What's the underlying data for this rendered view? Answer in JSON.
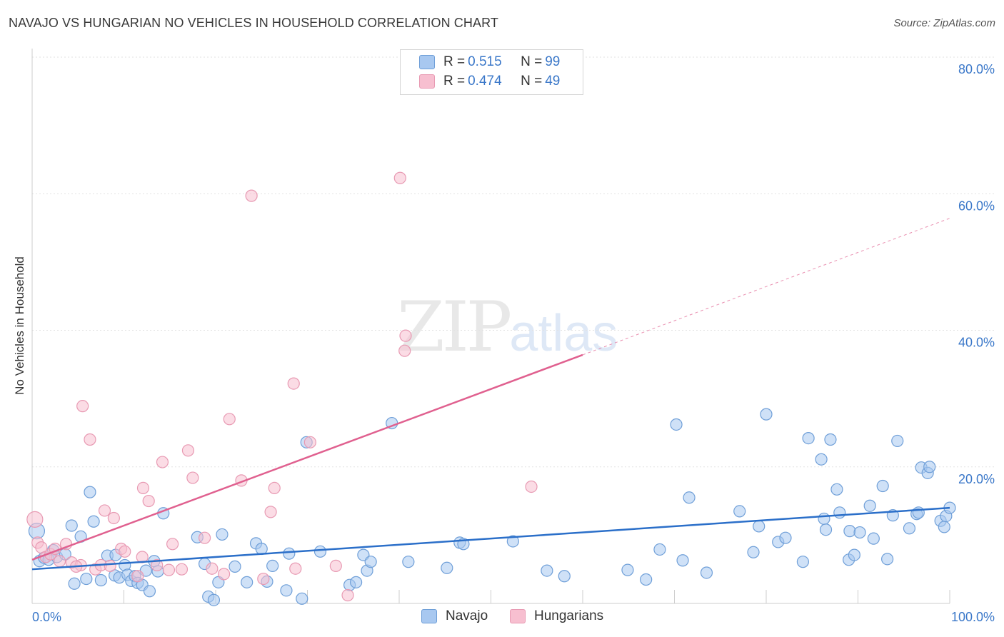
{
  "title": "NAVAJO VS HUNGARIAN NO VEHICLES IN HOUSEHOLD CORRELATION CHART",
  "source": "Source: ZipAtlas.com",
  "watermark": {
    "zip": "ZIP",
    "atlas": "atlas"
  },
  "legend_top": {
    "navajo": {
      "r_label": "R = ",
      "r_value": "0.515",
      "n_label": "N = ",
      "n_value": "99"
    },
    "hungarian": {
      "r_label": "R = ",
      "r_value": "0.474",
      "n_label": "N = ",
      "n_value": "49"
    }
  },
  "colors": {
    "navajo_fill": "#a8c8f0",
    "navajo_stroke": "#6f9fd8",
    "navajo_line": "#2b6fc9",
    "hungarian_fill": "#f7bfd0",
    "hungarian_stroke": "#e89ab3",
    "hungarian_line": "#e0608f",
    "tick_text": "#3b78c9"
  },
  "chart_data": {
    "type": "scatter",
    "title": "NAVAJO VS HUNGARIAN NO VEHICLES IN HOUSEHOLD CORRELATION CHART",
    "xlabel": "",
    "ylabel": "No Vehicles in Household",
    "xlim": [
      0,
      100
    ],
    "ylim": [
      0,
      80
    ],
    "x_tick_labels": [
      "0.0%",
      "100.0%"
    ],
    "y_ticks": [
      20,
      40,
      60,
      80
    ],
    "y_tick_labels": [
      "20.0%",
      "40.0%",
      "60.0%",
      "80.0%"
    ],
    "grid": true,
    "legend_position": "top-center",
    "series": [
      {
        "name": "Navajo",
        "trend": {
          "x0": 0,
          "y0": 5.0,
          "x1": 100,
          "y1": 14.0
        },
        "points": [
          [
            0.5,
            10.6
          ],
          [
            0.8,
            6.2
          ],
          [
            1.3,
            6.7
          ],
          [
            1.8,
            6.4
          ],
          [
            2.3,
            7.8
          ],
          [
            2.7,
            6.8
          ],
          [
            3.6,
            7.2
          ],
          [
            4.3,
            11.4
          ],
          [
            4.6,
            2.9
          ],
          [
            5.3,
            9.8
          ],
          [
            5.9,
            3.6
          ],
          [
            6.3,
            16.3
          ],
          [
            6.7,
            12.0
          ],
          [
            7.5,
            3.4
          ],
          [
            8.2,
            7.0
          ],
          [
            9.0,
            4.1
          ],
          [
            9.1,
            7.1
          ],
          [
            9.5,
            3.8
          ],
          [
            10.1,
            5.6
          ],
          [
            10.4,
            4.2
          ],
          [
            10.8,
            3.3
          ],
          [
            11.2,
            4.0
          ],
          [
            11.5,
            3.0
          ],
          [
            12.0,
            2.7
          ],
          [
            12.4,
            4.8
          ],
          [
            12.8,
            1.8
          ],
          [
            13.3,
            6.2
          ],
          [
            13.7,
            4.7
          ],
          [
            14.3,
            13.2
          ],
          [
            18.0,
            9.7
          ],
          [
            18.8,
            5.8
          ],
          [
            19.2,
            1.0
          ],
          [
            19.8,
            0.5
          ],
          [
            20.3,
            3.1
          ],
          [
            20.7,
            10.1
          ],
          [
            22.1,
            5.4
          ],
          [
            23.4,
            3.1
          ],
          [
            24.4,
            8.8
          ],
          [
            25.0,
            8.0
          ],
          [
            25.6,
            3.2
          ],
          [
            26.2,
            5.5
          ],
          [
            27.7,
            1.9
          ],
          [
            28.0,
            7.3
          ],
          [
            29.4,
            0.7
          ],
          [
            29.9,
            23.6
          ],
          [
            31.4,
            7.6
          ],
          [
            34.6,
            2.7
          ],
          [
            35.3,
            3.1
          ],
          [
            36.1,
            7.1
          ],
          [
            36.5,
            4.8
          ],
          [
            36.9,
            6.1
          ],
          [
            39.2,
            26.4
          ],
          [
            41.0,
            6.1
          ],
          [
            45.2,
            5.2
          ],
          [
            46.6,
            8.9
          ],
          [
            47.0,
            8.7
          ],
          [
            52.4,
            9.1
          ],
          [
            56.1,
            4.8
          ],
          [
            58.0,
            4.0
          ],
          [
            64.9,
            4.9
          ],
          [
            66.9,
            3.5
          ],
          [
            68.4,
            7.9
          ],
          [
            70.2,
            26.2
          ],
          [
            70.9,
            6.3
          ],
          [
            71.6,
            15.5
          ],
          [
            73.5,
            4.5
          ],
          [
            77.1,
            13.5
          ],
          [
            78.6,
            7.5
          ],
          [
            79.2,
            11.3
          ],
          [
            80.0,
            27.7
          ],
          [
            81.3,
            9.0
          ],
          [
            82.1,
            9.6
          ],
          [
            84.0,
            6.1
          ],
          [
            84.6,
            24.2
          ],
          [
            86.0,
            21.1
          ],
          [
            86.3,
            12.4
          ],
          [
            86.5,
            10.8
          ],
          [
            87.0,
            24.0
          ],
          [
            87.7,
            16.7
          ],
          [
            88.0,
            13.3
          ],
          [
            89.0,
            6.4
          ],
          [
            89.1,
            10.6
          ],
          [
            89.6,
            7.1
          ],
          [
            90.2,
            10.4
          ],
          [
            91.3,
            14.3
          ],
          [
            91.7,
            9.5
          ],
          [
            92.7,
            17.2
          ],
          [
            93.2,
            6.5
          ],
          [
            93.8,
            12.9
          ],
          [
            94.3,
            23.8
          ],
          [
            95.6,
            11.0
          ],
          [
            96.4,
            13.1
          ],
          [
            96.6,
            13.3
          ],
          [
            96.9,
            19.9
          ],
          [
            97.6,
            19.1
          ],
          [
            97.8,
            20.0
          ],
          [
            99.0,
            12.1
          ],
          [
            99.4,
            11.2
          ],
          [
            99.6,
            12.8
          ],
          [
            100.0,
            14.0
          ]
        ]
      },
      {
        "name": "Hungarians",
        "trend": {
          "x0": 0,
          "y0": 6.4,
          "x1": 60,
          "y1": 36.4,
          "dash_x1": 100,
          "dash_y1": 56.4
        },
        "points": [
          [
            0.3,
            12.3
          ],
          [
            0.6,
            8.9
          ],
          [
            1.0,
            8.2
          ],
          [
            1.5,
            6.8
          ],
          [
            2.0,
            7.2
          ],
          [
            2.5,
            8.0
          ],
          [
            3.0,
            6.2
          ],
          [
            3.7,
            8.7
          ],
          [
            4.3,
            6.0
          ],
          [
            5.3,
            5.6
          ],
          [
            5.5,
            28.9
          ],
          [
            6.3,
            24.0
          ],
          [
            6.9,
            5.0
          ],
          [
            7.5,
            5.6
          ],
          [
            7.9,
            13.6
          ],
          [
            8.5,
            5.5
          ],
          [
            8.9,
            12.5
          ],
          [
            9.7,
            8.0
          ],
          [
            10.1,
            7.6
          ],
          [
            11.5,
            4.0
          ],
          [
            12.1,
            16.9
          ],
          [
            12.7,
            15.0
          ],
          [
            13.6,
            5.6
          ],
          [
            14.2,
            20.7
          ],
          [
            14.9,
            4.9
          ],
          [
            15.3,
            8.7
          ],
          [
            17.0,
            22.4
          ],
          [
            17.5,
            18.4
          ],
          [
            18.8,
            9.6
          ],
          [
            19.6,
            5.1
          ],
          [
            20.9,
            4.3
          ],
          [
            21.5,
            27.0
          ],
          [
            22.8,
            18.0
          ],
          [
            23.9,
            59.7
          ],
          [
            25.2,
            3.6
          ],
          [
            26.0,
            13.4
          ],
          [
            26.4,
            16.9
          ],
          [
            28.5,
            32.2
          ],
          [
            28.7,
            5.1
          ],
          [
            30.3,
            23.6
          ],
          [
            33.1,
            5.5
          ],
          [
            34.4,
            1.2
          ],
          [
            40.1,
            62.3
          ],
          [
            40.6,
            37.0
          ],
          [
            40.7,
            39.2
          ],
          [
            54.4,
            17.1
          ],
          [
            12.0,
            6.8
          ],
          [
            16.3,
            5.0
          ],
          [
            4.8,
            5.4
          ]
        ]
      }
    ]
  }
}
